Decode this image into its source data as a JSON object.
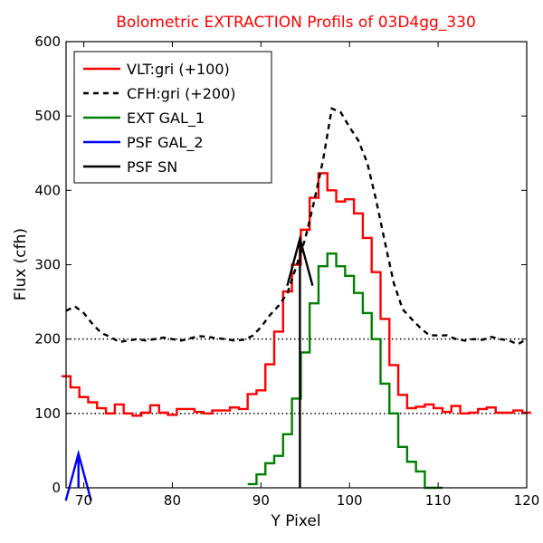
{
  "chart_data": {
    "type": "line",
    "title": "Bolometric EXTRACTION Profils of 03D4gg_330",
    "xlabel": "Y Pixel",
    "ylabel": "Flux (cfh)",
    "xlim": [
      68,
      120
    ],
    "ylim": [
      0,
      600
    ],
    "xticks": [
      70,
      80,
      90,
      100,
      110,
      120
    ],
    "yticks": [
      0,
      100,
      200,
      300,
      400,
      500,
      600
    ],
    "legend_position": "top-left",
    "reference_lines": [
      100,
      200
    ],
    "series": [
      {
        "name": "VLT:gri (+100)",
        "color": "#ff0000",
        "style": "steps",
        "x": [
          68,
          69,
          70,
          71,
          72,
          73,
          74,
          75,
          76,
          77,
          78,
          79,
          80,
          81,
          82,
          83,
          84,
          85,
          86,
          87,
          88,
          89,
          90,
          91,
          92,
          93,
          94,
          95,
          96,
          97,
          98,
          99,
          100,
          101,
          102,
          103,
          104,
          105,
          106,
          107,
          108,
          109,
          110,
          111,
          112,
          113,
          114,
          115,
          116,
          117,
          118,
          119,
          120
        ],
        "y": [
          150,
          135,
          122,
          115,
          107,
          100,
          112,
          100,
          97,
          101,
          111,
          101,
          98,
          106,
          106,
          102,
          100,
          104,
          104,
          108,
          106,
          126,
          131,
          166,
          210,
          264,
          300,
          347,
          390,
          423,
          400,
          385,
          388,
          369,
          336,
          290,
          227,
          165,
          125,
          107,
          109,
          112,
          107,
          102,
          110,
          100,
          101,
          106,
          108,
          101,
          101,
          104,
          101
        ]
      },
      {
        "name": "CFH:gri (+200)",
        "color": "#000000",
        "style": "dashed",
        "x": [
          68,
          69,
          70,
          71,
          72,
          73,
          74,
          75,
          76,
          77,
          78,
          79,
          80,
          81,
          82,
          83,
          84,
          85,
          86,
          87,
          88,
          89,
          90,
          91,
          92,
          93,
          94,
          95,
          96,
          97,
          98,
          99,
          100,
          101,
          102,
          103,
          104,
          105,
          106,
          107,
          108,
          109,
          110,
          111,
          112,
          113,
          114,
          115,
          116,
          117,
          118,
          119,
          120
        ],
        "y": [
          238,
          244,
          235,
          220,
          208,
          203,
          196,
          198,
          200,
          198,
          200,
          202,
          200,
          198,
          201,
          204,
          203,
          201,
          200,
          198,
          199,
          204,
          216,
          232,
          245,
          262,
          298,
          335,
          385,
          440,
          510,
          505,
          485,
          467,
          437,
          387,
          330,
          275,
          240,
          227,
          215,
          205,
          205,
          205,
          200,
          198,
          200,
          199,
          203,
          200,
          198,
          193,
          200
        ]
      },
      {
        "name": "EXT GAL_1",
        "color": "#008000",
        "style": "steps",
        "x": [
          89,
          90,
          91,
          92,
          93,
          94,
          95,
          96,
          97,
          98,
          99,
          100,
          101,
          102,
          103,
          104,
          105,
          106,
          107,
          108,
          109,
          110
        ],
        "y": [
          5,
          18,
          33,
          43,
          72,
          120,
          182,
          248,
          298,
          315,
          298,
          285,
          262,
          235,
          200,
          140,
          100,
          55,
          35,
          22,
          0,
          0
        ]
      },
      {
        "name": "PSF GAL_2",
        "color": "#0000ff",
        "style": "arrow",
        "x": [
          69.4
        ],
        "y": [
          46
        ]
      },
      {
        "name": "PSF SN",
        "color": "#000000",
        "style": "arrow",
        "x": [
          94.4
        ],
        "y": [
          335
        ]
      }
    ]
  }
}
